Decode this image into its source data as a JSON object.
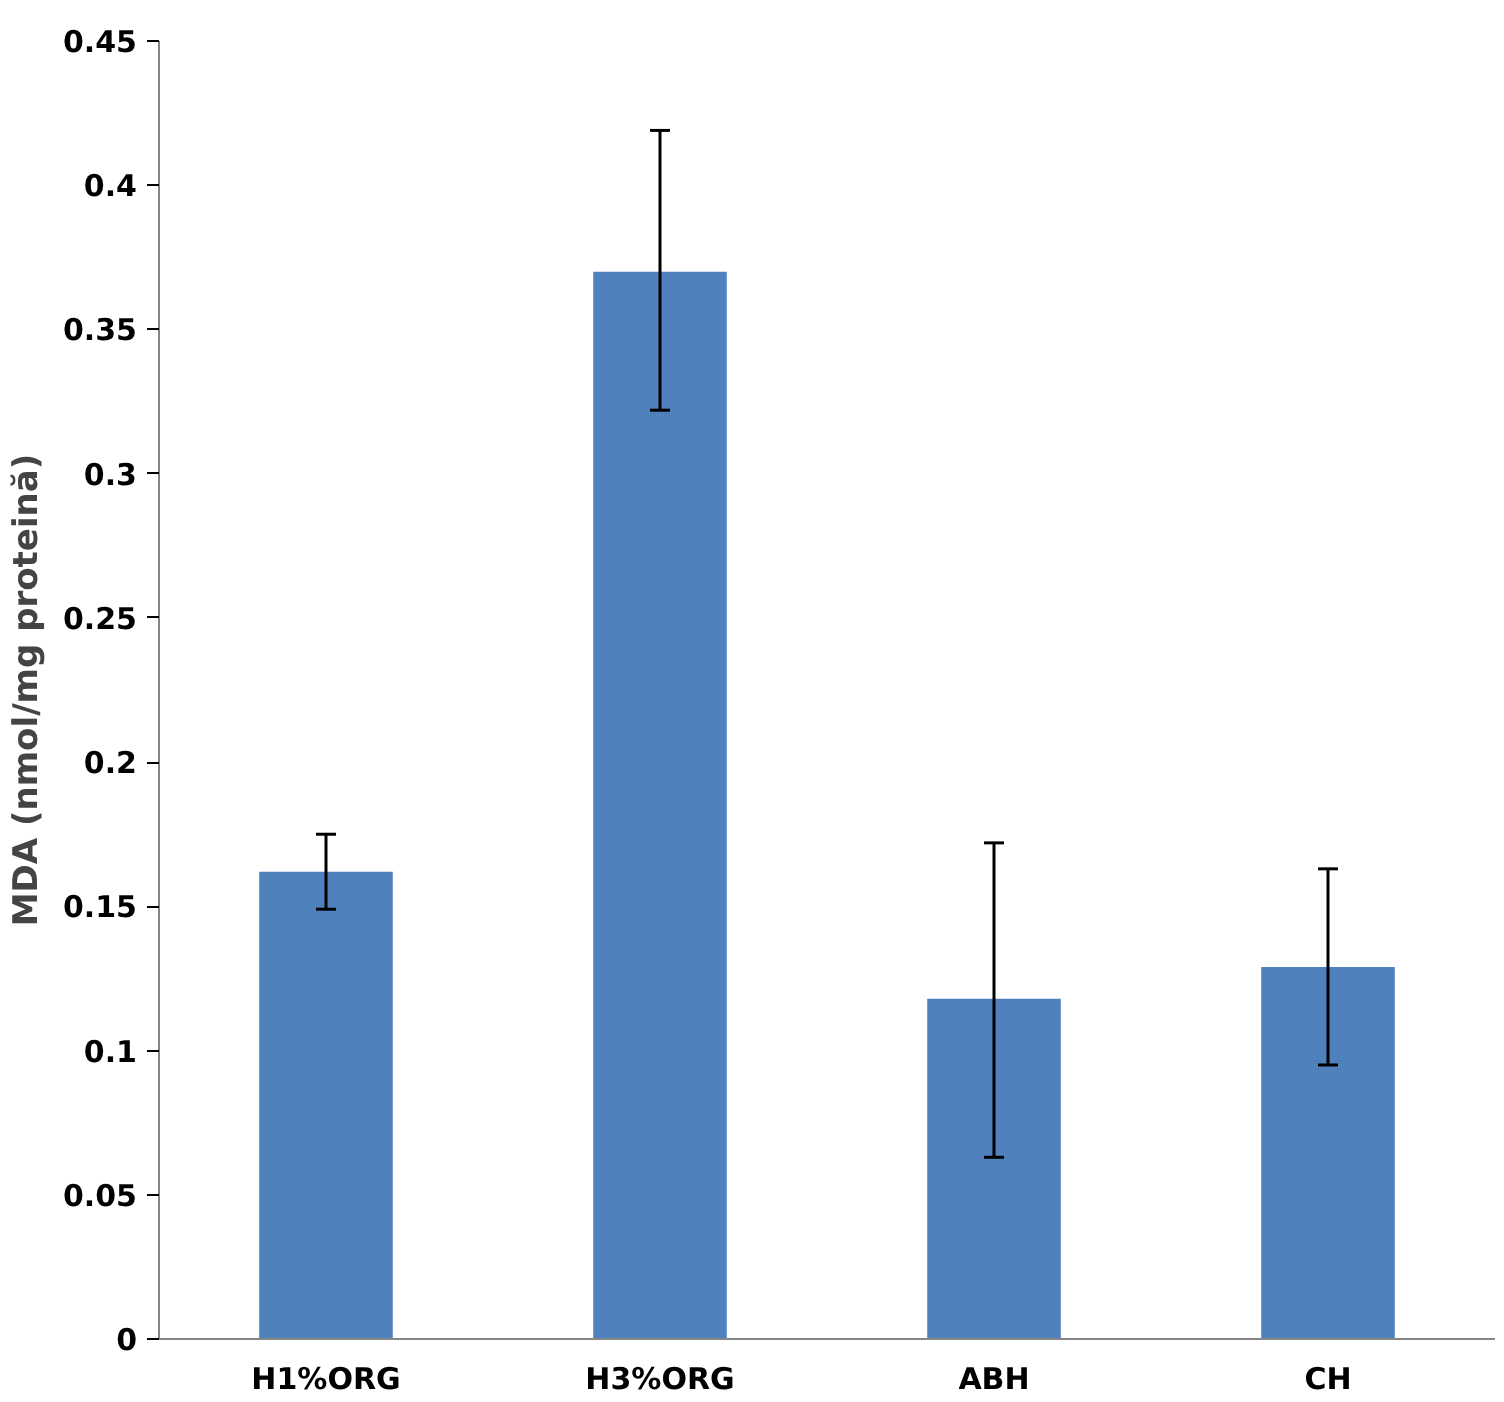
{
  "chart_data": {
    "type": "bar",
    "ylabel": "MDA (nmol/mg proteină)",
    "categories": [
      "H1%ORG",
      "H3%ORG",
      "ABH",
      "CH"
    ],
    "values": [
      0.162,
      0.37,
      0.118,
      0.129
    ],
    "errors": [
      [
        0.149,
        0.175
      ],
      [
        0.322,
        0.419
      ],
      [
        0.063,
        0.172
      ],
      [
        0.095,
        0.163
      ]
    ],
    "color": "#4f81bd",
    "ylim": [
      0,
      0.45
    ],
    "yticks": [
      0,
      0.05,
      0.1,
      0.15,
      0.2,
      0.25,
      0.3,
      0.35,
      0.4,
      0.45
    ],
    "grid": false
  }
}
